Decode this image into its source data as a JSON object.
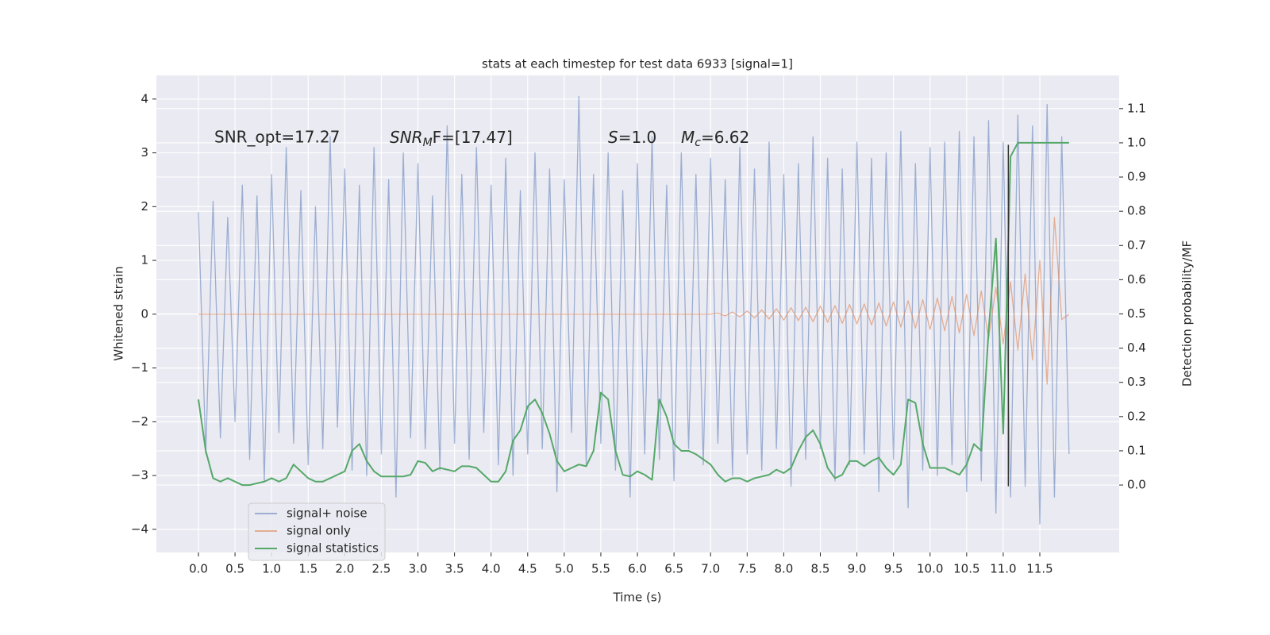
{
  "chart_data": {
    "type": "line",
    "title": "stats at each timestep for test data 6933 [signal=1]",
    "xlabel": "Time (s)",
    "ylabel": "Whitened strain",
    "y2label": "Detection probability/MF",
    "annotations": [
      {
        "text": "SNR_opt=17.27"
      },
      {
        "main": "SNR",
        "sub": "M",
        "tail": "F=[17.47]"
      },
      {
        "main": "S",
        "tail": "=1.0"
      },
      {
        "main": "M",
        "sub": "c",
        "tail": "=6.62"
      }
    ],
    "xlim": [
      -0.575,
      12.585
    ],
    "ylim": [
      -4.43,
      4.44
    ],
    "y2lim": [
      -0.197,
      1.197
    ],
    "xticks": [
      {
        "value": 0,
        "label": "0.0"
      },
      0.5,
      {
        "value": 1,
        "label": "1.0"
      },
      1.5,
      {
        "value": 2,
        "label": "2.0"
      },
      2.5,
      {
        "value": 3,
        "label": "3.0"
      },
      3.5,
      {
        "value": 4,
        "label": "4.0"
      },
      4.5,
      {
        "value": 5,
        "label": "5.0"
      },
      5.5,
      {
        "value": 6,
        "label": "6.0"
      },
      6.5,
      {
        "value": 7,
        "label": "7.0"
      },
      7.5,
      {
        "value": 8,
        "label": "8.0"
      },
      8.5,
      {
        "value": 9,
        "label": "9.0"
      },
      9.5,
      {
        "value": 10,
        "label": "10.0"
      },
      10.5,
      {
        "value": 11,
        "label": "11.0"
      },
      11.5
    ],
    "yticks": [
      {
        "value": -4,
        "label": "−4"
      },
      {
        "value": -3,
        "label": "−3"
      },
      {
        "value": -2,
        "label": "−2"
      },
      {
        "value": -1,
        "label": "−1"
      },
      0,
      1,
      2,
      3,
      4
    ],
    "y2ticks": [
      {
        "value": 0,
        "label": "0.0"
      },
      0.1,
      0.2,
      0.3,
      0.4,
      0.5,
      0.6,
      0.7,
      0.8,
      0.9,
      {
        "value": 1,
        "label": "1.0"
      },
      1.1
    ],
    "grid": true,
    "legend": "lower left",
    "vline": {
      "x": 11.07,
      "y": [
        -3.2,
        3.15
      ],
      "color": "#333333"
    },
    "x": [
      0,
      0.1,
      0.2,
      0.3,
      0.4,
      0.5,
      0.6,
      0.7,
      0.8,
      0.9,
      1,
      1.1,
      1.2,
      1.3,
      1.4,
      1.5,
      1.6,
      1.7,
      1.8,
      1.9,
      2,
      2.1,
      2.2,
      2.3,
      2.4,
      2.5,
      2.6,
      2.7,
      2.8,
      2.9,
      3,
      3.1,
      3.2,
      3.3,
      3.4,
      3.5,
      3.6,
      3.7,
      3.8,
      3.9,
      4,
      4.1,
      4.2,
      4.3,
      4.4,
      4.5,
      4.6,
      4.7,
      4.8,
      4.9,
      5,
      5.1,
      5.2,
      5.3,
      5.4,
      5.5,
      5.6,
      5.7,
      5.8,
      5.9,
      6,
      6.1,
      6.2,
      6.3,
      6.4,
      6.5,
      6.6,
      6.7,
      6.8,
      6.9,
      7,
      7.1,
      7.2,
      7.3,
      7.4,
      7.5,
      7.6,
      7.7,
      7.8,
      7.9,
      8,
      8.1,
      8.2,
      8.3,
      8.4,
      8.5,
      8.6,
      8.7,
      8.8,
      8.9,
      9,
      9.1,
      9.2,
      9.3,
      9.4,
      9.5,
      9.6,
      9.7,
      9.8,
      9.9,
      10,
      10.1,
      10.2,
      10.3,
      10.4,
      10.5,
      10.6,
      10.7,
      10.8,
      10.9,
      11,
      11.1,
      11.2,
      11.3,
      11.4,
      11.5,
      11.6,
      11.7,
      11.8,
      11.9
    ],
    "series": [
      {
        "name": "signal+ noise",
        "color": "#4c72b0",
        "opacity": 0.5,
        "values": [
          1.9,
          -2.6,
          2.1,
          -2.3,
          1.8,
          -2.0,
          2.4,
          -2.7,
          2.2,
          -3.1,
          2.6,
          -2.2,
          3.1,
          -2.4,
          2.3,
          -2.8,
          2.0,
          -2.5,
          3.3,
          -2.1,
          2.7,
          -2.9,
          2.4,
          -3.0,
          3.1,
          -2.6,
          2.5,
          -3.4,
          3.0,
          -2.3,
          2.8,
          -2.5,
          2.2,
          -2.9,
          3.5,
          -2.4,
          2.6,
          -2.7,
          3.1,
          -2.2,
          2.4,
          -2.8,
          2.9,
          -3.0,
          2.3,
          -2.6,
          3.0,
          -2.5,
          2.7,
          -3.3,
          2.5,
          -2.2,
          4.05,
          -2.8,
          2.6,
          -2.4,
          3.0,
          -2.9,
          2.3,
          -3.4,
          2.8,
          -2.6,
          3.3,
          -2.7,
          2.4,
          -3.1,
          3.0,
          -2.5,
          2.6,
          -2.8,
          2.9,
          -2.4,
          2.5,
          -3.0,
          3.1,
          -2.6,
          2.7,
          -2.9,
          3.2,
          -2.5,
          2.6,
          -3.2,
          2.8,
          -2.7,
          3.3,
          -2.5,
          2.9,
          -3.1,
          2.7,
          -2.8,
          3.2,
          -2.6,
          2.9,
          -3.3,
          3.0,
          -2.7,
          3.4,
          -3.6,
          2.8,
          -2.9,
          3.1,
          -3.0,
          3.2,
          -2.8,
          3.4,
          -3.3,
          3.3,
          -3.1,
          3.6,
          -3.7,
          3.2,
          -3.4,
          3.7,
          -3.2,
          3.5,
          -3.9,
          3.9,
          -3.4,
          3.3,
          -2.6
        ]
      },
      {
        "name": "signal only",
        "color": "#dd8452",
        "opacity": 0.6,
        "values": [
          0,
          0,
          0,
          0,
          0,
          0,
          0,
          0,
          0,
          0,
          0,
          0,
          0,
          0,
          0,
          0,
          0,
          0,
          0,
          0,
          0,
          0,
          0,
          0,
          0,
          0,
          0,
          0,
          0,
          0,
          0,
          0,
          0,
          0,
          0,
          0,
          0,
          0,
          0,
          0,
          0,
          0,
          0,
          0,
          0,
          0,
          0,
          0,
          0,
          0,
          0,
          0,
          0,
          0,
          0,
          0,
          0,
          0,
          0,
          0,
          0,
          0,
          0,
          0,
          0,
          0,
          0,
          0,
          0,
          0,
          0,
          0.02,
          -0.03,
          0.04,
          -0.05,
          0.06,
          -0.07,
          0.08,
          -0.09,
          0.1,
          -0.11,
          0.12,
          -0.12,
          0.13,
          -0.14,
          0.15,
          -0.15,
          0.16,
          -0.17,
          0.18,
          -0.18,
          0.19,
          -0.2,
          0.21,
          -0.22,
          0.23,
          -0.24,
          0.25,
          -0.26,
          0.27,
          -0.28,
          0.3,
          -0.31,
          0.33,
          -0.35,
          0.37,
          -0.4,
          0.43,
          -0.46,
          0.5,
          -0.55,
          0.6,
          -0.67,
          0.75,
          -0.85,
          1.0,
          -1.3,
          1.8,
          -0.1,
          0
        ]
      },
      {
        "name": "signal statistics",
        "color": "#55a868",
        "opacity": 1,
        "axis": "y2",
        "values": [
          0.25,
          0.1,
          0.02,
          0.01,
          0.02,
          0.01,
          0,
          0,
          0.005,
          0.01,
          0.02,
          0.01,
          0.02,
          0.06,
          0.04,
          0.02,
          0.01,
          0.01,
          0.02,
          0.03,
          0.04,
          0.1,
          0.12,
          0.07,
          0.04,
          0.025,
          0.025,
          0.025,
          0.025,
          0.03,
          0.07,
          0.065,
          0.04,
          0.05,
          0.045,
          0.04,
          0.055,
          0.055,
          0.05,
          0.03,
          0.01,
          0.01,
          0.04,
          0.13,
          0.16,
          0.23,
          0.25,
          0.21,
          0.15,
          0.07,
          0.04,
          0.05,
          0.06,
          0.055,
          0.1,
          0.27,
          0.25,
          0.1,
          0.03,
          0.025,
          0.04,
          0.03,
          0.015,
          0.25,
          0.2,
          0.12,
          0.1,
          0.1,
          0.09,
          0.075,
          0.06,
          0.03,
          0.01,
          0.02,
          0.02,
          0.01,
          0.02,
          0.025,
          0.03,
          0.045,
          0.035,
          0.05,
          0.1,
          0.14,
          0.16,
          0.12,
          0.05,
          0.02,
          0.03,
          0.07,
          0.07,
          0.055,
          0.07,
          0.08,
          0.05,
          0.03,
          0.06,
          0.25,
          0.24,
          0.12,
          0.05,
          0.05,
          0.05,
          0.04,
          0.03,
          0.06,
          0.12,
          0.1,
          0.45,
          0.72,
          0.15,
          0.96,
          1.0,
          1.0,
          1.0,
          1.0,
          1.0,
          1.0,
          1.0,
          1.0
        ]
      }
    ]
  }
}
